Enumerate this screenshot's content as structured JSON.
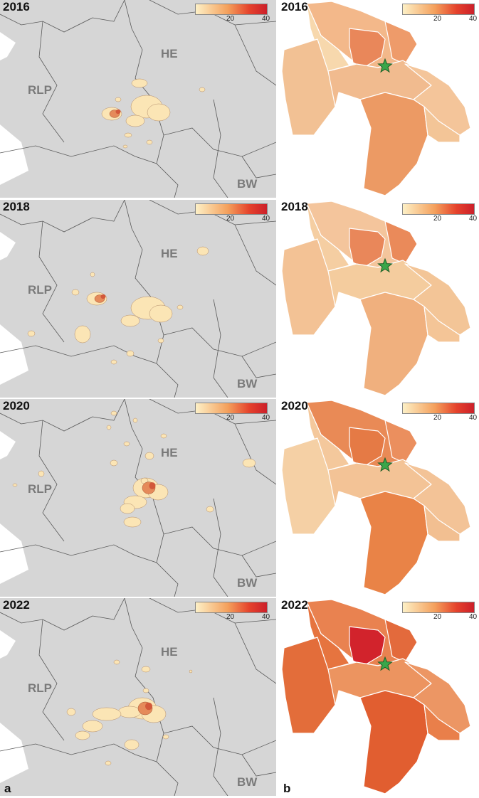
{
  "panels": [
    {
      "year": "2016",
      "a_regions": {
        "he": "HE",
        "rlp": "RLP",
        "bw": "BW"
      },
      "legend": {
        "mid": "20",
        "max": "40"
      },
      "colors": {
        "north": "#f3b88a",
        "centerNW": "#e9875a",
        "west": "#f2c194",
        "westLight": "#f7d8ad",
        "center": "#f1bb8f",
        "east": "#f4c59a",
        "south": "#ec9a64",
        "southEast": "#f3c597",
        "ne": "#ee9b6a"
      }
    },
    {
      "year": "2018",
      "a_regions": {
        "he": "HE",
        "rlp": "RLP",
        "bw": "BW"
      },
      "legend": {
        "mid": "20",
        "max": "40"
      },
      "colors": {
        "north": "#f4c59c",
        "centerNW": "#e9875a",
        "west": "#f3c295",
        "westLight": "#f5cea2",
        "center": "#f4cc9e",
        "east": "#f3c597",
        "south": "#f0b07e",
        "southEast": "#f4c597",
        "ne": "#ea8a5a"
      }
    },
    {
      "year": "2020",
      "a_regions": {
        "he": "HE",
        "rlp": "RLP",
        "bw": "BW"
      },
      "legend": {
        "mid": "20",
        "max": "40"
      },
      "colors": {
        "north": "#e98a56",
        "centerNW": "#e57a45",
        "west": "#f5d0a5",
        "westLight": "#f4c89c",
        "center": "#f3c396",
        "east": "#f3c397",
        "south": "#e98347",
        "southEast": "#f2bf91",
        "ne": "#eb8f5e"
      }
    },
    {
      "year": "2022",
      "a_regions": {
        "he": "HE",
        "rlp": "RLP",
        "bw": "BW"
      },
      "legend": {
        "mid": "20",
        "max": "40"
      },
      "colors": {
        "north": "#e98250",
        "centerNW": "#d2232c",
        "west": "#e36d3a",
        "westLight": "#e6743f",
        "center": "#ec9460",
        "east": "#ec9664",
        "south": "#e15e30",
        "southEast": "#e97f4a",
        "ne": "#e36a3c"
      }
    }
  ],
  "labels": {
    "a": "a",
    "b": "b"
  }
}
